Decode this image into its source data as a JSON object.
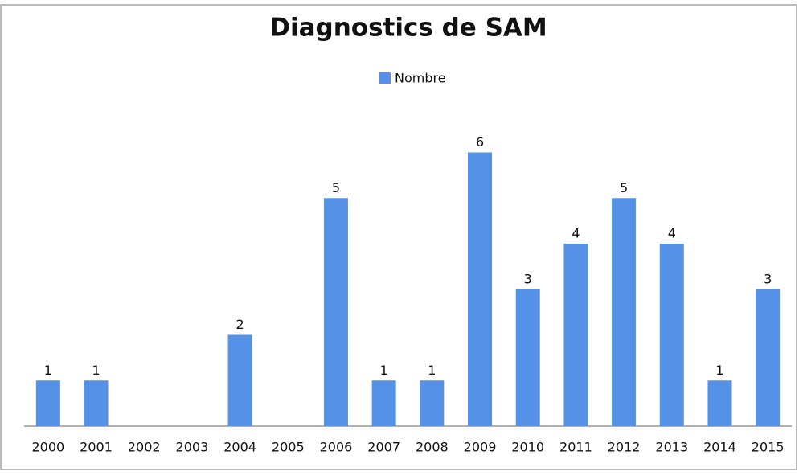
{
  "chart_data": {
    "type": "bar",
    "title": "Diagnostics de SAM",
    "categories": [
      "2000",
      "2001",
      "2002",
      "2003",
      "2004",
      "2005",
      "2006",
      "2007",
      "2008",
      "2009",
      "2010",
      "2011",
      "2012",
      "2013",
      "2014",
      "2015"
    ],
    "series": [
      {
        "name": "Nombre",
        "color": "#5591e6",
        "values": [
          1,
          1,
          0,
          0,
          2,
          0,
          5,
          1,
          1,
          6,
          3,
          4,
          5,
          4,
          1,
          3
        ],
        "value_labels": [
          "1",
          "1",
          null,
          null,
          "2",
          null,
          "5",
          "1",
          "1",
          "6",
          "3",
          "4",
          "5",
          "4",
          "1",
          "3"
        ]
      }
    ],
    "ylim": [
      0,
      8
    ],
    "legend": "top"
  }
}
